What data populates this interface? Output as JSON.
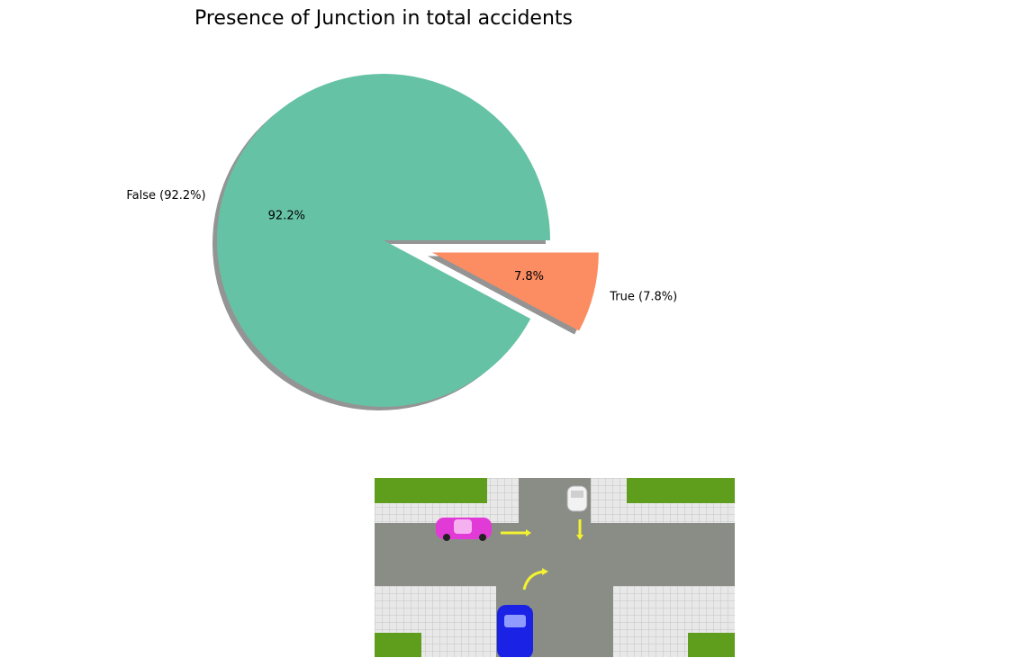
{
  "chart_data": {
    "type": "pie",
    "title": "Presence of Junction in total accidents",
    "start_angle_deg": 0,
    "shadow": true,
    "slices": [
      {
        "label": "False (92.2%)",
        "pct_label": "92.2%",
        "value": 92.2,
        "explode": 0.0,
        "color": "#66c2a5"
      },
      {
        "label": "True (7.8%)",
        "pct_label": "7.8%",
        "value": 7.8,
        "explode": 0.3,
        "color": "#fc8d62"
      }
    ]
  },
  "illustration": {
    "subject": "road junction with cars",
    "colors": {
      "grass": "#5f9d1c",
      "road": "#8a8d86",
      "pavement": "#e6e6e6",
      "arrow": "#f2f230",
      "car_magenta": "#e23ad6",
      "car_white": "#f2f2f2",
      "car_blue": "#1a22e6"
    }
  }
}
